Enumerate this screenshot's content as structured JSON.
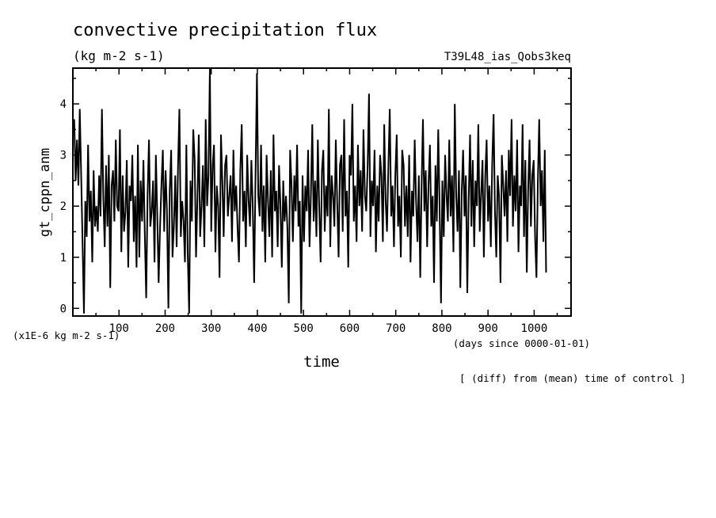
{
  "chart_data": {
    "type": "line",
    "title": "convective precipitation flux",
    "units": "(kg m-2 s-1)",
    "experiment": "T39L48_ias_Qobs3keq",
    "ylabel": "gt_cppn_anm",
    "yscale_note": "(x1E-6 kg m-2 s-1)",
    "xlabel": "time",
    "xunits": "(days since 0000-01-01)",
    "footnote": "[ (diff) from (mean) time of control ]",
    "xlim": [
      0,
      1080
    ],
    "ylim": [
      -0.15,
      4.7
    ],
    "xticks": [
      100,
      200,
      300,
      400,
      500,
      600,
      700,
      800,
      900,
      1000
    ],
    "yticks": [
      0,
      1,
      2,
      3,
      4
    ],
    "series": [
      {
        "color": "#000000",
        "x_start": 3,
        "x_step": 3,
        "y": [
          3.7,
          2.5,
          3.3,
          2.4,
          3.9,
          2.6,
          1.3,
          -0.1,
          2.1,
          1.4,
          3.2,
          1.7,
          2.3,
          0.9,
          2.7,
          1.6,
          2.0,
          1.5,
          2.6,
          1.8,
          3.9,
          2.2,
          1.2,
          2.8,
          1.6,
          3.0,
          0.4,
          2.4,
          2.7,
          1.7,
          3.3,
          2.0,
          1.9,
          3.5,
          1.1,
          2.6,
          1.5,
          1.9,
          2.9,
          0.8,
          2.4,
          2.1,
          3.0,
          1.3,
          2.2,
          0.8,
          3.2,
          1.0,
          2.5,
          1.7,
          2.9,
          1.4,
          0.2,
          2.2,
          3.3,
          1.6,
          1.9,
          2.5,
          0.9,
          3.0,
          1.8,
          0.5,
          1.6,
          2.4,
          3.1,
          1.5,
          2.7,
          1.9,
          0.0,
          2.3,
          3.1,
          1.0,
          1.6,
          2.6,
          1.2,
          2.8,
          3.9,
          1.4,
          2.1,
          1.7,
          0.9,
          3.2,
          1.1,
          -0.1,
          2.5,
          1.7,
          3.5,
          2.9,
          1.0,
          2.2,
          3.4,
          1.4,
          2.0,
          2.8,
          1.2,
          3.7,
          2.0,
          2.6,
          4.7,
          1.5,
          2.8,
          3.2,
          1.1,
          2.4,
          2.0,
          0.6,
          3.4,
          2.5,
          1.4,
          2.8,
          3.0,
          1.8,
          2.2,
          2.6,
          1.3,
          3.1,
          1.9,
          2.4,
          1.6,
          0.9,
          2.7,
          3.6,
          1.7,
          2.3,
          1.2,
          3.0,
          2.1,
          1.6,
          2.9,
          2.0,
          0.5,
          2.6,
          4.6,
          2.2,
          1.8,
          3.2,
          1.5,
          2.4,
          0.9,
          3.0,
          2.1,
          1.4,
          2.7,
          1.0,
          3.4,
          1.9,
          2.3,
          1.2,
          2.8,
          2.0,
          0.8,
          2.5,
          1.7,
          2.2,
          1.6,
          0.1,
          3.1,
          2.4,
          1.3,
          2.6,
          1.9,
          3.2,
          1.6,
          2.1,
          -0.1,
          2.6,
          1.3,
          2.4,
          1.9,
          3.1,
          1.2,
          2.2,
          3.6,
          1.7,
          2.5,
          1.4,
          3.3,
          2.0,
          0.9,
          2.7,
          3.1,
          1.5,
          2.4,
          1.8,
          3.9,
          1.2,
          2.6,
          2.2,
          1.6,
          3.3,
          2.1,
          1.0,
          2.8,
          3.0,
          1.5,
          3.7,
          1.8,
          2.3,
          0.8,
          3.0,
          2.6,
          4.0,
          1.7,
          2.4,
          1.3,
          3.2,
          2.0,
          2.7,
          1.5,
          3.5,
          2.2,
          1.9,
          2.8,
          4.2,
          1.4,
          2.5,
          2.0,
          3.1,
          1.1,
          2.4,
          1.7,
          3.0,
          2.6,
          1.3,
          3.6,
          2.1,
          1.5,
          2.8,
          3.9,
          1.8,
          2.4,
          1.2,
          2.6,
          3.4,
          1.6,
          2.2,
          1.0,
          3.1,
          2.8,
          1.6,
          2.4,
          1.4,
          3.0,
          0.9,
          2.3,
          1.8,
          3.3,
          2.1,
          1.3,
          2.6,
          0.6,
          2.4,
          3.7,
          1.9,
          2.7,
          1.2,
          2.4,
          3.2,
          1.6,
          2.2,
          0.5,
          2.8,
          1.7,
          3.5,
          2.0,
          0.1,
          2.5,
          1.4,
          3.0,
          2.2,
          1.7,
          3.3,
          1.8,
          2.6,
          1.1,
          4.0,
          2.2,
          1.5,
          2.7,
          0.4,
          2.3,
          3.1,
          1.8,
          2.6,
          0.3,
          2.1,
          3.4,
          1.6,
          2.9,
          1.2,
          2.5,
          2.0,
          3.6,
          1.5,
          2.2,
          2.9,
          1.0,
          2.6,
          3.3,
          1.7,
          2.4,
          1.2,
          2.8,
          3.8,
          1.9,
          1.0,
          2.6,
          2.2,
          0.5,
          3.0,
          2.4,
          1.8,
          2.7,
          1.3,
          3.1,
          2.2,
          3.7,
          1.6,
          2.6,
          1.9,
          3.3,
          1.1,
          2.4,
          2.0,
          3.6,
          1.4,
          2.9,
          0.7,
          2.3,
          3.3,
          1.6,
          2.6,
          2.9,
          1.4,
          0.6,
          2.5,
          3.7,
          2.0,
          2.7,
          1.3,
          3.1,
          0.7
        ]
      }
    ]
  }
}
